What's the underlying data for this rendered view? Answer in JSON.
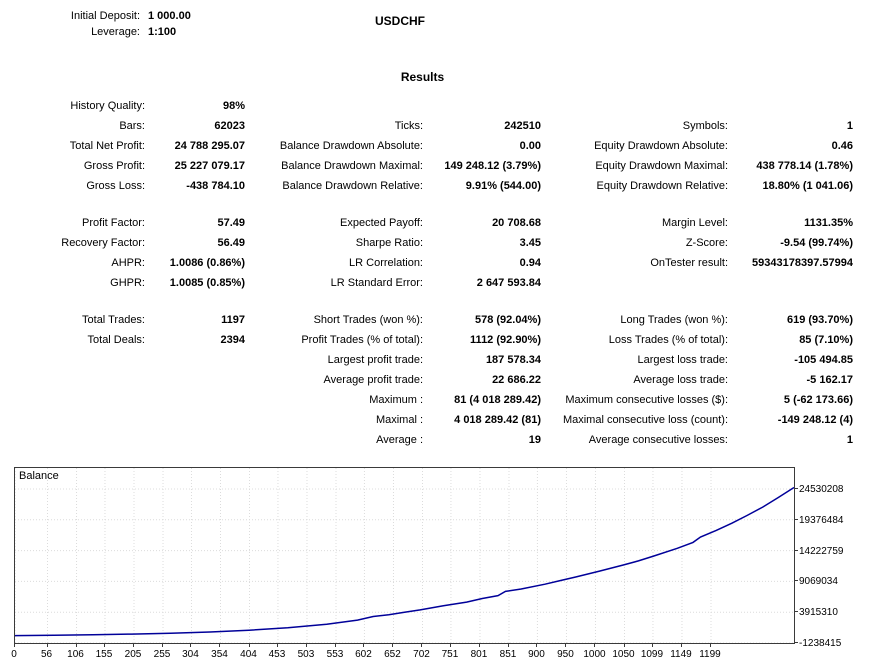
{
  "header": {
    "initial_deposit_label": "Initial Deposit:",
    "initial_deposit_value": "1 000.00",
    "leverage_label": "Leverage:",
    "leverage_value": "1:100",
    "symbol_title": "USDCHF"
  },
  "results": {
    "section_title": "Results",
    "groups": [
      [
        [
          {
            "l": "History Quality:",
            "v": "98%"
          },
          {
            "l": "",
            "v": ""
          },
          {
            "l": "",
            "v": ""
          }
        ],
        [
          {
            "l": "Bars:",
            "v": "62023"
          },
          {
            "l": "Ticks:",
            "v": "242510"
          },
          {
            "l": "Symbols:",
            "v": "1"
          }
        ],
        [
          {
            "l": "Total Net Profit:",
            "v": "24 788 295.07"
          },
          {
            "l": "Balance Drawdown Absolute:",
            "v": "0.00"
          },
          {
            "l": "Equity Drawdown Absolute:",
            "v": "0.46"
          }
        ],
        [
          {
            "l": "Gross Profit:",
            "v": "25 227 079.17"
          },
          {
            "l": "Balance Drawdown Maximal:",
            "v": "149 248.12 (3.79%)"
          },
          {
            "l": "Equity Drawdown Maximal:",
            "v": "438 778.14 (1.78%)"
          }
        ],
        [
          {
            "l": "Gross Loss:",
            "v": "-438 784.10"
          },
          {
            "l": "Balance Drawdown Relative:",
            "v": "9.91% (544.00)"
          },
          {
            "l": "Equity Drawdown Relative:",
            "v": "18.80% (1 041.06)"
          }
        ]
      ],
      [
        [
          {
            "l": "Profit Factor:",
            "v": "57.49"
          },
          {
            "l": "Expected Payoff:",
            "v": "20 708.68"
          },
          {
            "l": "Margin Level:",
            "v": "1131.35%"
          }
        ],
        [
          {
            "l": "Recovery Factor:",
            "v": "56.49"
          },
          {
            "l": "Sharpe Ratio:",
            "v": "3.45"
          },
          {
            "l": "Z-Score:",
            "v": "-9.54 (99.74%)"
          }
        ],
        [
          {
            "l": "AHPR:",
            "v": "1.0086 (0.86%)"
          },
          {
            "l": "LR Correlation:",
            "v": "0.94"
          },
          {
            "l": "OnTester result:",
            "v": "59343178397.57994"
          }
        ],
        [
          {
            "l": "GHPR:",
            "v": "1.0085 (0.85%)"
          },
          {
            "l": "LR Standard Error:",
            "v": "2 647 593.84"
          },
          {
            "l": "",
            "v": ""
          }
        ]
      ],
      [
        [
          {
            "l": "Total Trades:",
            "v": "1197"
          },
          {
            "l": "Short Trades (won %):",
            "v": "578 (92.04%)"
          },
          {
            "l": "Long Trades (won %):",
            "v": "619 (93.70%)"
          }
        ],
        [
          {
            "l": "Total Deals:",
            "v": "2394"
          },
          {
            "l": "Profit Trades (% of total):",
            "v": "1112 (92.90%)"
          },
          {
            "l": "Loss Trades (% of total):",
            "v": "85 (7.10%)"
          }
        ],
        [
          {
            "l": "",
            "v": ""
          },
          {
            "l": "Largest profit trade:",
            "v": "187 578.34"
          },
          {
            "l": "Largest loss trade:",
            "v": "-105 494.85"
          }
        ],
        [
          {
            "l": "",
            "v": ""
          },
          {
            "l": "Average profit trade:",
            "v": "22 686.22"
          },
          {
            "l": "Average loss trade:",
            "v": "-5 162.17"
          }
        ],
        [
          {
            "l": "",
            "v": ""
          },
          {
            "l": "Maximum :",
            "v": "81 (4 018 289.42)"
          },
          {
            "l": "Maximum consecutive losses ($):",
            "v": "5 (-62 173.66)"
          }
        ],
        [
          {
            "l": "",
            "v": ""
          },
          {
            "l": "Maximal :",
            "v": "4 018 289.42 (81)"
          },
          {
            "l": "Maximal consecutive loss (count):",
            "v": "-149 248.12 (4)"
          }
        ],
        [
          {
            "l": "",
            "v": ""
          },
          {
            "l": "Average :",
            "v": "19"
          },
          {
            "l": "Average consecutive losses:",
            "v": "1"
          }
        ]
      ]
    ]
  },
  "chart_data": {
    "type": "line",
    "title": "Balance",
    "line_color": "#000099",
    "grid_color": "#dcdcdc",
    "border_color": "#3a3a3a",
    "legend_position": "top-left",
    "grid": true,
    "xlim": [
      0,
      1342
    ],
    "ylim": [
      -1238415,
      28044111
    ],
    "x_ticks": [
      0,
      56,
      106,
      155,
      205,
      255,
      304,
      354,
      404,
      453,
      503,
      553,
      602,
      652,
      702,
      751,
      801,
      851,
      900,
      950,
      1000,
      1050,
      1099,
      1149,
      1199
    ],
    "y_ticks": [
      24530208,
      19376484,
      14222759,
      9069034,
      3915310,
      -1238415
    ],
    "series": [
      {
        "name": "Balance",
        "points": [
          [
            0,
            1000
          ],
          [
            67,
            60000
          ],
          [
            134,
            150000
          ],
          [
            201,
            250000
          ],
          [
            268,
            400000
          ],
          [
            336,
            600000
          ],
          [
            403,
            900000
          ],
          [
            470,
            1300000
          ],
          [
            537,
            1900000
          ],
          [
            590,
            2600000
          ],
          [
            617,
            3200000
          ],
          [
            644,
            3500000
          ],
          [
            671,
            3900000
          ],
          [
            698,
            4300000
          ],
          [
            738,
            5000000
          ],
          [
            778,
            5600000
          ],
          [
            805,
            6200000
          ],
          [
            832,
            6700000
          ],
          [
            845,
            7400000
          ],
          [
            872,
            7800000
          ],
          [
            913,
            8600000
          ],
          [
            939,
            9200000
          ],
          [
            966,
            9800000
          ],
          [
            1007,
            10800000
          ],
          [
            1047,
            11800000
          ],
          [
            1074,
            12500000
          ],
          [
            1100,
            13300000
          ],
          [
            1141,
            14600000
          ],
          [
            1168,
            15600000
          ],
          [
            1181,
            16500000
          ],
          [
            1208,
            17600000
          ],
          [
            1235,
            18800000
          ],
          [
            1261,
            20100000
          ],
          [
            1288,
            21500000
          ],
          [
            1315,
            23100000
          ],
          [
            1342,
            24789295
          ]
        ]
      }
    ]
  }
}
